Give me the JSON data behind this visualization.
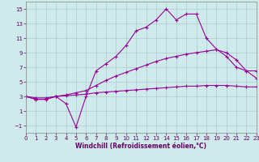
{
  "xlabel": "Windchill (Refroidissement éolien,°C)",
  "background_color": "#ceeaea",
  "grid_color": "#a8cccc",
  "line_color": "#990099",
  "xlim": [
    0,
    23
  ],
  "ylim": [
    -2,
    16
  ],
  "xticks": [
    0,
    1,
    2,
    3,
    4,
    5,
    6,
    7,
    8,
    9,
    10,
    11,
    12,
    13,
    14,
    15,
    16,
    17,
    18,
    19,
    20,
    21,
    22,
    23
  ],
  "yticks": [
    -1,
    1,
    3,
    5,
    7,
    9,
    11,
    13,
    15
  ],
  "line1_x": [
    0,
    1,
    2,
    3,
    4,
    5,
    6,
    7,
    8,
    9,
    10,
    11,
    12,
    13,
    14,
    15,
    16,
    17,
    18,
    19,
    20,
    21,
    22,
    23
  ],
  "line1_y": [
    3,
    2.6,
    2.6,
    3.0,
    2.0,
    -1.2,
    3.0,
    6.5,
    7.5,
    8.5,
    10.0,
    12.0,
    12.5,
    13.5,
    15.0,
    13.5,
    14.3,
    14.3,
    11.0,
    9.5,
    8.5,
    7.0,
    6.5,
    6.5
  ],
  "line2_x": [
    0,
    1,
    2,
    3,
    4,
    5,
    6,
    7,
    8,
    9,
    10,
    11,
    12,
    13,
    14,
    15,
    16,
    17,
    18,
    19,
    20,
    21,
    22,
    23
  ],
  "line2_y": [
    3,
    2.6,
    2.6,
    3.0,
    3.2,
    3.5,
    3.8,
    4.5,
    5.2,
    5.8,
    6.3,
    6.8,
    7.3,
    7.8,
    8.2,
    8.5,
    8.8,
    9.0,
    9.2,
    9.4,
    9.0,
    8.0,
    6.5,
    5.5
  ],
  "line3_x": [
    0,
    1,
    2,
    3,
    4,
    5,
    6,
    7,
    8,
    9,
    10,
    11,
    12,
    13,
    14,
    15,
    16,
    17,
    18,
    19,
    20,
    21,
    22,
    23
  ],
  "line3_y": [
    3,
    2.8,
    2.8,
    3.0,
    3.1,
    3.2,
    3.3,
    3.5,
    3.6,
    3.7,
    3.8,
    3.9,
    4.0,
    4.1,
    4.2,
    4.3,
    4.4,
    4.4,
    4.5,
    4.5,
    4.5,
    4.4,
    4.3,
    4.3
  ],
  "marker": "+",
  "markersize": 3,
  "markeredgewidth": 0.8,
  "linewidth": 0.8,
  "tick_fontsize": 5,
  "xlabel_fontsize": 5.5
}
